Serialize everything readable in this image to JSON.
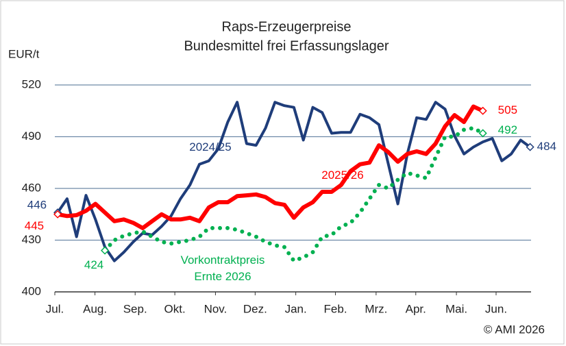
{
  "chart_data": {
    "type": "line",
    "title": "Raps-Erzeugerpreise",
    "subtitle": "Bundesmittel frei Erfassungslager",
    "y_label": "EUR/t",
    "source": "© AMI 2026",
    "x": [
      0,
      1,
      2,
      3,
      4,
      5,
      6,
      7,
      8,
      9,
      10,
      11,
      12,
      13,
      14,
      15,
      16,
      17,
      18,
      19,
      20,
      21,
      22,
      23,
      24,
      25,
      26,
      27,
      28,
      29,
      30,
      31,
      32,
      33,
      34,
      35,
      36,
      37,
      38,
      39,
      40,
      41,
      42,
      43,
      44,
      45,
      46,
      47,
      48,
      49,
      50
    ],
    "xlim": [
      -0.3,
      50.1
    ],
    "xticks": [
      {
        "value": -0.3,
        "label": "Jul."
      },
      {
        "value": 3.95,
        "label": "Aug."
      },
      {
        "value": 8.2,
        "label": "Sep."
      },
      {
        "value": 12.4,
        "label": "Okt."
      },
      {
        "value": 16.7,
        "label": "Nov."
      },
      {
        "value": 20.9,
        "label": "Dez."
      },
      {
        "value": 25.2,
        "label": "Jan."
      },
      {
        "value": 29.4,
        "label": "Feb."
      },
      {
        "value": 33.7,
        "label": "Mrz."
      },
      {
        "value": 37.9,
        "label": "Apr."
      },
      {
        "value": 42.2,
        "label": "Mai."
      },
      {
        "value": 46.4,
        "label": "Jun."
      }
    ],
    "ylim": [
      400,
      520
    ],
    "yticks": [
      400,
      430,
      460,
      490,
      520
    ],
    "grid": true,
    "series": [
      {
        "name": "2024/25",
        "color": "#1f3d7a",
        "style": "solid",
        "values": [
          446,
          454,
          432,
          456,
          442,
          426,
          418,
          423,
          429,
          434,
          433,
          438,
          444,
          454,
          462,
          474,
          476,
          483,
          498.5,
          510,
          486,
          485,
          495,
          510,
          508,
          507,
          488,
          507,
          504,
          492,
          492.5,
          492.5,
          503,
          501,
          497,
          474,
          451,
          480,
          501,
          500,
          510,
          506,
          490.5,
          480,
          484,
          487,
          489,
          476,
          480,
          488,
          484
        ]
      },
      {
        "name": "2025/26",
        "color": "#ff0000",
        "style": "solid",
        "values": [
          445,
          444,
          444.5,
          447,
          451,
          446,
          441,
          442,
          440,
          437,
          441,
          445,
          442,
          442,
          443,
          441,
          449,
          452,
          452,
          455.5,
          456,
          456.5,
          455,
          451.5,
          450.5,
          443,
          449,
          452,
          458,
          458,
          462,
          470,
          474,
          475,
          485,
          481,
          475.5,
          480,
          481.5,
          480,
          486,
          496,
          502.5,
          498.5,
          507.5,
          505,
          null,
          null,
          null,
          null,
          null
        ]
      },
      {
        "name": "Vorkontraktpreis Ernte 2026",
        "color": "#00b050",
        "style": "dotted",
        "values": [
          null,
          null,
          null,
          null,
          null,
          424,
          430,
          432.5,
          434,
          435,
          432,
          429,
          428,
          429,
          430,
          432,
          437,
          437,
          437,
          436,
          434,
          432,
          429,
          427,
          426,
          418,
          420,
          423,
          432,
          433,
          438,
          440,
          446,
          454,
          462,
          460,
          465,
          469,
          467.5,
          466,
          478,
          490,
          490,
          494,
          495,
          492,
          null,
          null,
          null,
          null,
          null
        ]
      }
    ]
  }
}
